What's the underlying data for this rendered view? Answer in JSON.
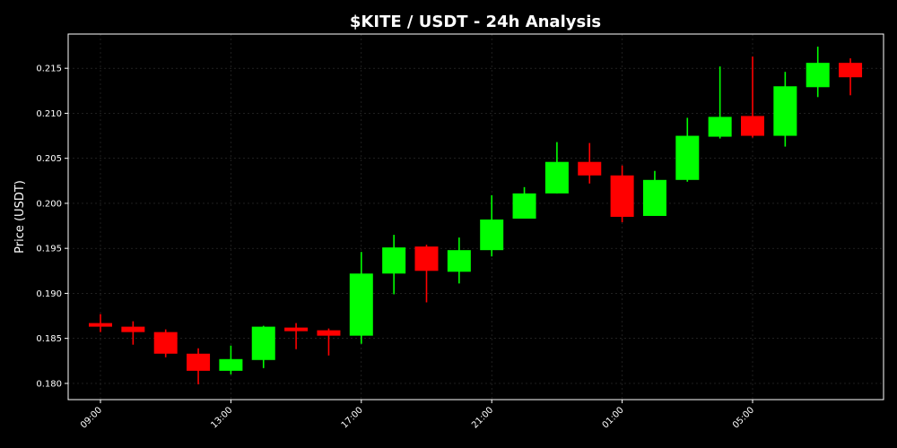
{
  "chart_data": {
    "type": "candlestick",
    "title": "$KITE / USDT - 24h Analysis",
    "xlabel": "",
    "ylabel": "Price (USDT)",
    "ylim": [
      0.1782,
      0.2188
    ],
    "y_ticks": [
      0.18,
      0.185,
      0.19,
      0.195,
      0.2,
      0.205,
      0.21,
      0.215
    ],
    "y_tick_labels": [
      "0.180",
      "0.185",
      "0.190",
      "0.195",
      "0.200",
      "0.205",
      "0.210",
      "0.215"
    ],
    "x_tick_labels": [
      "09:00",
      "13:00",
      "17:00",
      "21:00",
      "01:00",
      "05:00"
    ],
    "x_tick_positions": [
      0,
      4,
      8,
      12,
      16,
      20
    ],
    "grid": true,
    "colors": {
      "up": "#00ff00",
      "down": "#ff0000",
      "background": "#000000",
      "axes": "#ffffff",
      "grid": "#333333"
    },
    "candles": [
      {
        "time": "09:00",
        "open": 0.1867,
        "high": 0.1877,
        "low": 0.1857,
        "close": 0.1863
      },
      {
        "time": "10:00",
        "open": 0.1863,
        "high": 0.1869,
        "low": 0.1843,
        "close": 0.1857
      },
      {
        "time": "11:00",
        "open": 0.1857,
        "high": 0.186,
        "low": 0.1829,
        "close": 0.1833
      },
      {
        "time": "12:00",
        "open": 0.1833,
        "high": 0.1839,
        "low": 0.1799,
        "close": 0.1814
      },
      {
        "time": "13:00",
        "open": 0.1814,
        "high": 0.1842,
        "low": 0.181,
        "close": 0.1827
      },
      {
        "time": "14:00",
        "open": 0.1826,
        "high": 0.1864,
        "low": 0.1817,
        "close": 0.1863
      },
      {
        "time": "15:00",
        "open": 0.1862,
        "high": 0.1867,
        "low": 0.1838,
        "close": 0.1858
      },
      {
        "time": "16:00",
        "open": 0.1859,
        "high": 0.1861,
        "low": 0.1831,
        "close": 0.1853
      },
      {
        "time": "17:00",
        "open": 0.1853,
        "high": 0.1946,
        "low": 0.1844,
        "close": 0.1922
      },
      {
        "time": "18:00",
        "open": 0.1922,
        "high": 0.1965,
        "low": 0.1899,
        "close": 0.1951
      },
      {
        "time": "19:00",
        "open": 0.1952,
        "high": 0.1954,
        "low": 0.189,
        "close": 0.1925
      },
      {
        "time": "20:00",
        "open": 0.1924,
        "high": 0.1962,
        "low": 0.1911,
        "close": 0.1948
      },
      {
        "time": "21:00",
        "open": 0.1948,
        "high": 0.2009,
        "low": 0.1941,
        "close": 0.1982
      },
      {
        "time": "22:00",
        "open": 0.1983,
        "high": 0.2018,
        "low": 0.1983,
        "close": 0.2011
      },
      {
        "time": "23:00",
        "open": 0.2011,
        "high": 0.2068,
        "low": 0.2011,
        "close": 0.2046
      },
      {
        "time": "00:00",
        "open": 0.2046,
        "high": 0.2067,
        "low": 0.2022,
        "close": 0.2031
      },
      {
        "time": "01:00",
        "open": 0.2031,
        "high": 0.2042,
        "low": 0.1979,
        "close": 0.1985
      },
      {
        "time": "02:00",
        "open": 0.1986,
        "high": 0.2036,
        "low": 0.1986,
        "close": 0.2026
      },
      {
        "time": "03:00",
        "open": 0.2026,
        "high": 0.2095,
        "low": 0.2024,
        "close": 0.2075
      },
      {
        "time": "04:00",
        "open": 0.2074,
        "high": 0.2152,
        "low": 0.2072,
        "close": 0.2096
      },
      {
        "time": "05:00",
        "open": 0.2097,
        "high": 0.2163,
        "low": 0.2073,
        "close": 0.2075
      },
      {
        "time": "06:00",
        "open": 0.2075,
        "high": 0.2146,
        "low": 0.2063,
        "close": 0.213
      },
      {
        "time": "07:00",
        "open": 0.2129,
        "high": 0.2174,
        "low": 0.2118,
        "close": 0.2156
      },
      {
        "time": "08:00",
        "open": 0.2156,
        "high": 0.2161,
        "low": 0.212,
        "close": 0.214
      }
    ]
  }
}
